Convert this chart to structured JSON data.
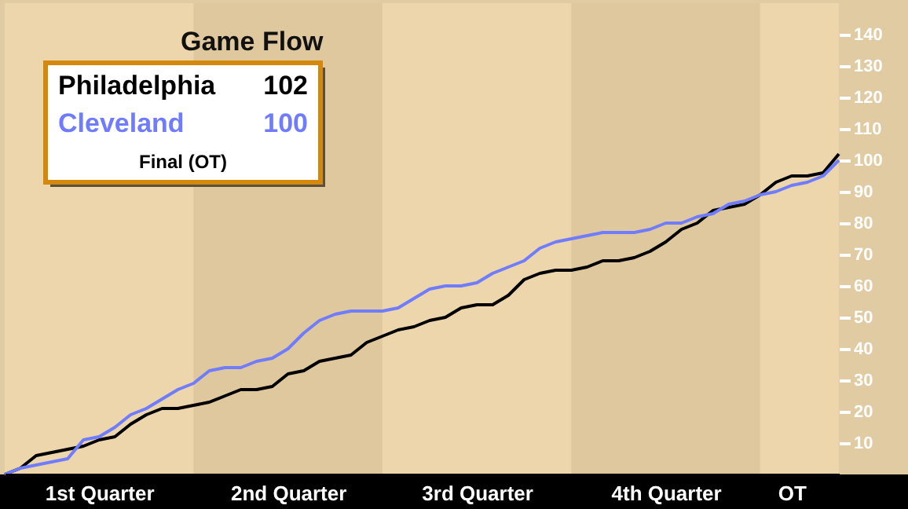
{
  "chart_data": {
    "type": "line",
    "title": "Game Flow",
    "annotations": [
      "102",
      "100",
      "Final (OT)"
    ],
    "marker": "none",
    "line_style": "solid",
    "grid": false,
    "categories": [
      null,
      null,
      null,
      null,
      null,
      null,
      "1st Quarter",
      null,
      null,
      null,
      null,
      null,
      null,
      null,
      null,
      null,
      null,
      null,
      "2nd Quarter",
      null,
      null,
      null,
      null,
      null,
      null,
      null,
      null,
      null,
      null,
      null,
      "3rd Quarter",
      null,
      null,
      null,
      null,
      null,
      null,
      null,
      null,
      null,
      null,
      null,
      "4th Quarter",
      null,
      null,
      null,
      null,
      null,
      null,
      null,
      "OT",
      null,
      null,
      null
    ],
    "ylim": [
      0,
      150
    ],
    "yticks": [
      10,
      20,
      30,
      40,
      50,
      60,
      70,
      80,
      90,
      100,
      110,
      120,
      130,
      140
    ],
    "series": [
      {
        "name": "Philadelphia",
        "color": "#000000",
        "values": [
          0,
          2,
          6,
          7,
          8,
          9,
          11,
          12,
          16,
          19,
          21,
          21,
          22,
          23,
          25,
          27,
          27,
          28,
          32,
          33,
          36,
          37,
          38,
          42,
          44,
          46,
          47,
          49,
          50,
          53,
          54,
          54,
          57,
          62,
          64,
          65,
          65,
          66,
          68,
          68,
          69,
          71,
          74,
          78,
          80,
          84,
          85,
          86,
          89,
          93,
          95,
          95,
          96,
          102
        ]
      },
      {
        "name": "Cleveland",
        "color": "#6f7cff",
        "values": [
          0,
          2,
          3,
          4,
          5,
          11,
          12,
          15,
          19,
          21,
          24,
          27,
          29,
          33,
          34,
          34,
          36,
          37,
          40,
          45,
          49,
          51,
          52,
          52,
          52,
          53,
          56,
          59,
          60,
          60,
          61,
          64,
          66,
          68,
          72,
          74,
          75,
          76,
          77,
          77,
          77,
          78,
          80,
          80,
          82,
          83,
          86,
          87,
          89,
          90,
          92,
          93,
          95,
          100
        ]
      }
    ]
  }
}
